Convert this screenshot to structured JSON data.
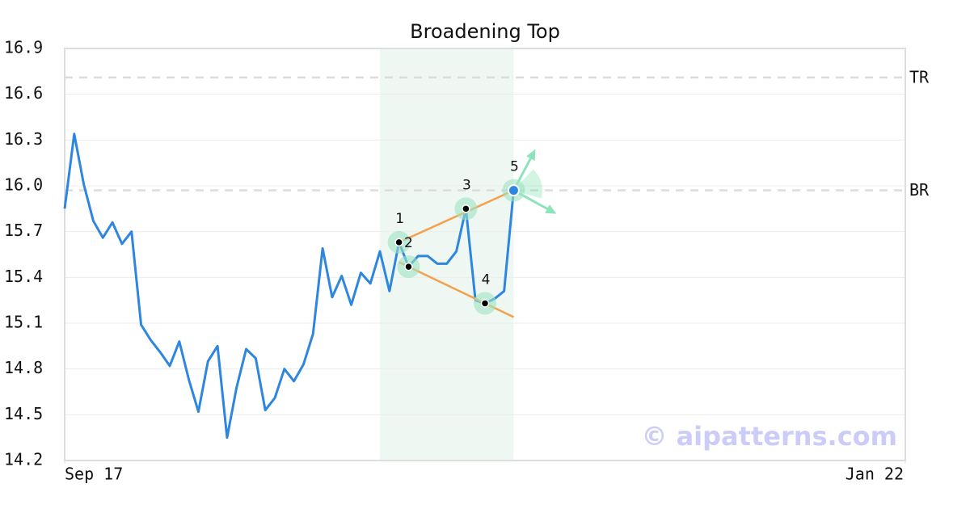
{
  "chart_data": {
    "type": "line",
    "title": "Broadening Top",
    "x": [
      0,
      1,
      2,
      3,
      4,
      5,
      6,
      7,
      8,
      9,
      10,
      11,
      12,
      13,
      14,
      15,
      16,
      17,
      18,
      19,
      20,
      21,
      22,
      23,
      24,
      25,
      26,
      27,
      28,
      29,
      30,
      31,
      32,
      33,
      34,
      35,
      36,
      37,
      38,
      39,
      40,
      41,
      42,
      43,
      44,
      45,
      46,
      47
    ],
    "series": [
      {
        "color": "#2e86de",
        "values": [
          15.85,
          16.34,
          16.01,
          15.77,
          15.66,
          15.76,
          15.62,
          15.7,
          15.09,
          14.99,
          14.91,
          14.82,
          14.98,
          14.73,
          14.52,
          14.85,
          14.95,
          14.35,
          14.68,
          14.93,
          14.87,
          14.53,
          14.61,
          14.8,
          14.72,
          14.83,
          15.03,
          15.59,
          15.27,
          15.41,
          15.22,
          15.43,
          15.36,
          15.57,
          15.31,
          15.63,
          15.47,
          15.54,
          15.54,
          15.49,
          15.49,
          15.57,
          15.85,
          15.25,
          15.23,
          15.26,
          15.31,
          15.97
        ]
      }
    ],
    "xlim": [
      0,
      88
    ],
    "xticks": [
      {
        "value": 0,
        "label": "Sep 17"
      },
      {
        "value": 88,
        "label": "Jan 22"
      }
    ],
    "ylim": [
      14.2,
      16.9
    ],
    "yticks": [
      14.2,
      14.5,
      14.8,
      15.1,
      15.4,
      15.7,
      {
        "value": 16.0,
        "label": "16.0"
      },
      16.3,
      16.6,
      16.9
    ],
    "grid": true,
    "shaded_region": [
      33,
      47
    ],
    "levels": [
      {
        "label": "TR",
        "value": 16.71
      },
      {
        "label": "BR",
        "value": 15.97
      }
    ],
    "pattern": {
      "points": [
        {
          "label": "1",
          "x": 35,
          "value": 15.63
        },
        {
          "label": "2",
          "x": 36,
          "value": 15.47
        },
        {
          "label": "3",
          "x": 42,
          "value": 15.85
        },
        {
          "label": "4",
          "x": 44,
          "value": 15.23
        },
        {
          "label": "5",
          "x": 47,
          "value": 15.97
        }
      ],
      "trend_lines": [
        {
          "x": [
            35,
            47
          ],
          "values": [
            15.63,
            15.97
          ]
        },
        {
          "x": [
            35,
            47
          ],
          "values": [
            15.5,
            15.14
          ]
        }
      ]
    },
    "watermark": "© aipatterns.com"
  }
}
